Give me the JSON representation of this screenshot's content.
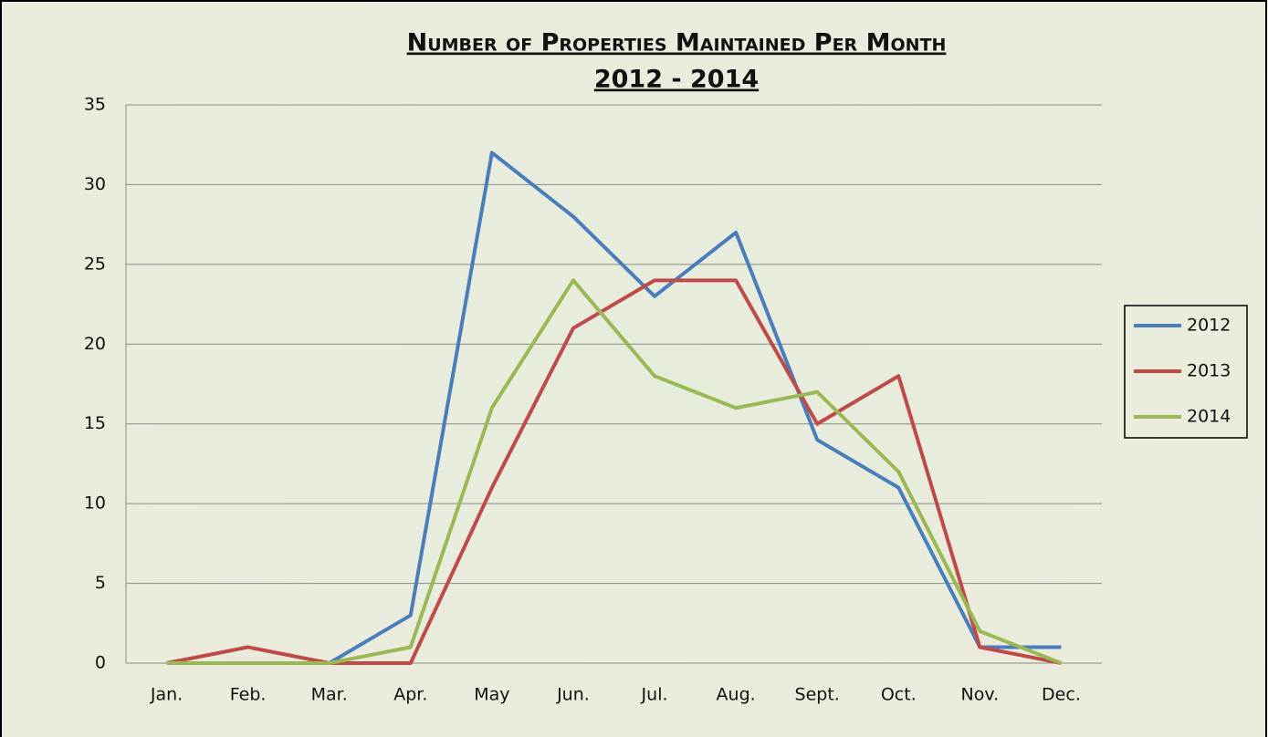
{
  "chart_data": {
    "type": "line",
    "title": "Number of Properties Maintained Per Month",
    "subtitle": "2012 - 2014",
    "categories": [
      "Jan.",
      "Feb.",
      "Mar.",
      "Apr.",
      "May",
      "Jun.",
      "Jul.",
      "Aug.",
      "Sept.",
      "Oct.",
      "Nov.",
      "Dec."
    ],
    "series": [
      {
        "name": "2012",
        "color": "#4a7ebb",
        "values": [
          null,
          null,
          0,
          3,
          32,
          28,
          23,
          27,
          14,
          11,
          1,
          1
        ]
      },
      {
        "name": "2013",
        "color": "#be4b48",
        "values": [
          0,
          1,
          0,
          0,
          11,
          21,
          24,
          24,
          15,
          18,
          1,
          0
        ]
      },
      {
        "name": "2014",
        "color": "#98b954",
        "values": [
          0,
          0,
          0,
          1,
          16,
          24,
          18,
          16,
          17,
          12,
          2,
          0
        ]
      }
    ],
    "ylim": [
      0,
      35
    ],
    "yticks": [
      0,
      5,
      10,
      15,
      20,
      25,
      30,
      35
    ],
    "grid": true,
    "legend": "right"
  }
}
